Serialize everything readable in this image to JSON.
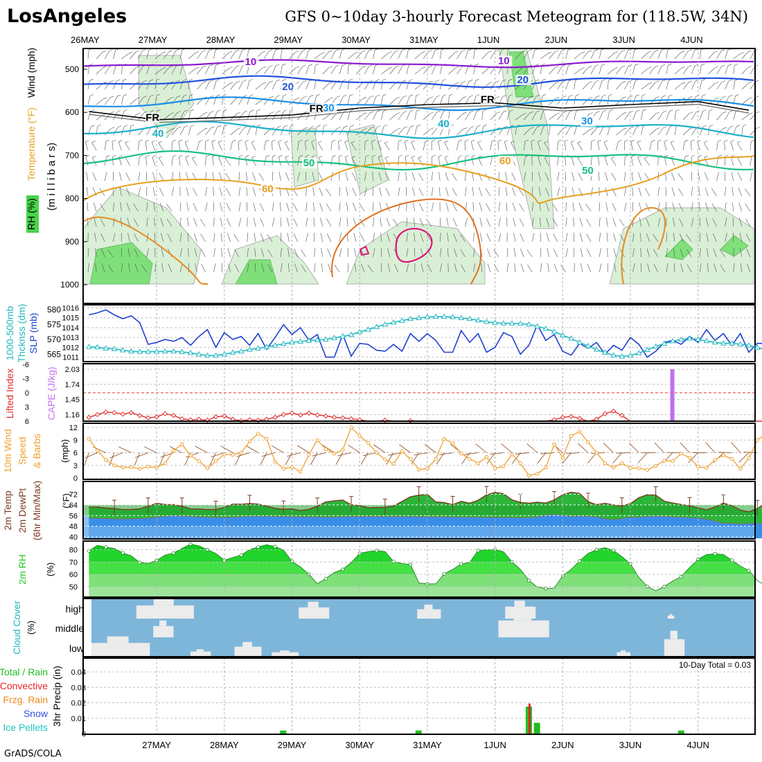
{
  "header": {
    "site": "LosAngeles",
    "title": "GFS 0~10day 3-hourly Forecast Meteogram for (118.5W, 34N)"
  },
  "footer": {
    "credit": "GrADS/COLA"
  },
  "colors": {
    "slp": "#2040d0",
    "thickness": "#20b8c0",
    "lifted_index": "#e03030",
    "cape": "#c070f0",
    "wind10m": "#f0a030",
    "barbs": "#8b4513",
    "temp": "#1db530",
    "dewpt": "#3b8ee8",
    "rh": "#28c828",
    "cloud_sky": "#7eb6d9",
    "cloud": "#ececec",
    "rain": "#22bb22",
    "convective": "#ee2222"
  },
  "chart_data": [
    {
      "panel": "upper_air",
      "type": "contour",
      "legend_labels": [
        "Wind (mph)",
        "Temperature (°F)",
        "RH (%)"
      ],
      "ylabel": "(m i l l i b a r s)",
      "ylim": [
        1000,
        460
      ],
      "yticks": [
        "500",
        "600",
        "700",
        "800",
        "900",
        "1000"
      ],
      "top_day_labels": [
        "26MAY",
        "27MAY",
        "28MAY",
        "29MAY",
        "30MAY",
        "31MAY",
        "1JUN",
        "2JUN",
        "3JUN",
        "4JUN"
      ],
      "contour_labels": [
        {
          "text": "10",
          "day": 2.39,
          "p": 490
        },
        {
          "text": "10",
          "day": 6.13,
          "p": 488
        },
        {
          "text": "20",
          "day": 2.94,
          "p": 548
        },
        {
          "text": "20",
          "day": 6.41,
          "p": 532
        },
        {
          "text": "30",
          "day": 3.54,
          "p": 597
        },
        {
          "text": "30",
          "day": 7.36,
          "p": 628
        },
        {
          "text": "40",
          "day": 1.02,
          "p": 657
        },
        {
          "text": "40",
          "day": 5.24,
          "p": 634
        },
        {
          "text": "50",
          "day": 3.25,
          "p": 725
        },
        {
          "text": "50",
          "day": 7.37,
          "p": 743
        },
        {
          "text": "60",
          "day": 2.64,
          "p": 785
        },
        {
          "text": "60",
          "day": 6.15,
          "p": 720
        },
        {
          "text": "FR",
          "day": 0.94,
          "p": 620
        },
        {
          "text": "FR",
          "day": 3.36,
          "p": 599
        },
        {
          "text": "FR",
          "day": 5.89,
          "p": 578
        }
      ],
      "freezing_level_mb": [
        {
          "day": 0.0,
          "p": 598
        },
        {
          "day": 1.0,
          "p": 617
        },
        {
          "day": 2.0,
          "p": 612
        },
        {
          "day": 3.0,
          "p": 606
        },
        {
          "day": 4.0,
          "p": 590
        },
        {
          "day": 5.0,
          "p": 582
        },
        {
          "day": 6.0,
          "p": 578
        },
        {
          "day": 7.0,
          "p": 590
        },
        {
          "day": 8.0,
          "p": 582
        },
        {
          "day": 9.0,
          "p": 575
        },
        {
          "day": 9.75,
          "p": 595
        }
      ]
    },
    {
      "panel": "pressure",
      "type": "line",
      "left_label": "1000-500mb Thcknss (dm)",
      "right_label": "SLP (mb)",
      "left_ylim": [
        563,
        582
      ],
      "left_ticks": [
        565,
        570,
        575,
        580
      ],
      "right_ylim": [
        1010.5,
        1016.5
      ],
      "right_ticks": [
        1011,
        1012,
        1013,
        1014,
        1015,
        1016
      ],
      "series": [
        {
          "name": "SLP",
          "axis": "right",
          "values": [
            1015.3,
            1015.5,
            1015.8,
            1015.3,
            1014.9,
            1015.2,
            1014.5,
            1012.3,
            1012.5,
            1012.8,
            1012.6,
            1013.0,
            1012.2,
            1013.1,
            1013.8,
            1012.0,
            1013.5,
            1012.8,
            1013.1,
            1012.2,
            1013.4,
            1011.8,
            1013.0,
            1014.3,
            1013.3,
            1014.0,
            1012.7,
            1013.3,
            1011.0,
            1011.0,
            1013.3,
            1011.1,
            1012.4,
            1012.3,
            1011.7,
            1011.6,
            1012.3,
            1011.6,
            1013.4,
            1012.6,
            1013.4,
            1012.7,
            1011.5,
            1011.5,
            1013.7,
            1012.5,
            1013.4,
            1011.5,
            1012.0,
            1013.5,
            1013.1,
            1011.3,
            1012.2,
            1014.3,
            1012.7,
            1013.3,
            1011.6,
            1011.2,
            1012.4,
            1011.9,
            1012.5,
            1011.3,
            1012.2,
            1011.7,
            1013.0,
            1012.3,
            1011.0,
            1011.6,
            1012.5,
            1012.7,
            1012.3,
            1013.1,
            1012.5,
            1013.8,
            1012.7,
            1013.4,
            1012.2,
            1013.4,
            1011.5,
            1012.4,
            1012.4
          ]
        },
        {
          "name": "1000-500mb Thickness",
          "axis": "left",
          "values": [
            567.5,
            567.4,
            567.0,
            566.8,
            566.4,
            566.0,
            565.9,
            565.9,
            565.9,
            566.0,
            566.0,
            565.8,
            565.5,
            565.0,
            564.6,
            564.6,
            565.0,
            565.6,
            566.0,
            566.6,
            567.0,
            567.5,
            568.0,
            568.5,
            569.0,
            569.3,
            569.6,
            569.8,
            570.0,
            570.5,
            571.0,
            571.6,
            572.5,
            573.3,
            574.2,
            575.0,
            575.7,
            576.3,
            576.9,
            577.2,
            577.5,
            577.6,
            577.6,
            577.5,
            577.2,
            576.9,
            576.4,
            575.9,
            575.6,
            575.4,
            575.4,
            575.3,
            575.0,
            574.4,
            573.6,
            572.6,
            571.4,
            570.3,
            569.0,
            567.8,
            566.6,
            565.6,
            564.7,
            564.3,
            564.6,
            565.4,
            566.5,
            567.6,
            568.6,
            569.4,
            570.0,
            570.3,
            570.0,
            569.5,
            569.0,
            568.7,
            568.7,
            568.4,
            568.0,
            567.3,
            566.6
          ]
        }
      ]
    },
    {
      "panel": "stability",
      "type": "line+bar",
      "left_label": "Lifted Index",
      "right_label": "CAPE (J/kg)",
      "left_ticks": [
        -6,
        -3,
        0,
        3,
        6
      ],
      "left_ylim": [
        -6,
        6
      ],
      "right_ticks": [
        1.16,
        1.45,
        1.74,
        2.03
      ],
      "right_ylim": [
        0.95,
        2.15
      ],
      "zero_line": 0,
      "series": [
        {
          "name": "Lifted Index",
          "values": [
            5.2,
            4.6,
            4.1,
            4.2,
            4.5,
            4.2,
            4.8,
            5.3,
            5.1,
            4.4,
            4.8,
            5.5,
            5.7,
            5.6,
            5.8,
            5.1,
            4.9,
            5.6,
            5.9,
            5.7,
            5.8,
            5.6,
            5.2,
            4.6,
            4.3,
            4.7,
            4.3,
            4.7,
            4.9,
            5.2,
            5.3,
            5.5,
            5.7,
            6.0,
            6.0,
            5.8,
            6.0,
            6.0,
            5.9,
            6.0,
            6.0,
            6.0,
            6.0,
            6.0,
            6.0,
            6.0,
            6.0,
            6.0,
            6.0,
            6.0,
            6.0,
            6.0,
            6.0,
            6.0,
            6.0,
            5.7,
            5.2,
            5.0,
            5.4,
            6.0,
            5.6,
            4.4,
            3.9,
            4.8,
            6.0,
            6.0,
            6.0,
            6.0,
            6.0,
            6.0,
            6.0,
            6.0,
            6.0,
            6.0,
            6.0,
            6.0,
            6.0,
            6.0,
            6.0,
            6.0,
            6.0
          ]
        },
        {
          "name": "CAPE",
          "bars": [
            {
              "day": 8.62,
              "value": 2.03
            }
          ]
        }
      ]
    },
    {
      "panel": "wind10m",
      "type": "line",
      "left_label": "10m Wind Speed & Barbs",
      "unit": "(mph)",
      "ylim": [
        0,
        12
      ],
      "yticks": [
        0,
        3,
        6,
        9,
        12
      ],
      "series": [
        {
          "name": "10m Wind Speed",
          "values": [
            9.3,
            6.5,
            4.3,
            3.0,
            2.5,
            2.6,
            2.2,
            2.7,
            2.5,
            3.5,
            6.5,
            8.0,
            5.3,
            4.0,
            2.3,
            4.0,
            5.6,
            5.5,
            6.0,
            8.7,
            10.5,
            9.3,
            3.9,
            2.2,
            2.6,
            1.5,
            5.5,
            9.0,
            6.8,
            5.8,
            6.7,
            12.0,
            10.0,
            8.3,
            6.0,
            4.4,
            3.4,
            6.3,
            4.5,
            2.0,
            2.2,
            4.5,
            9.3,
            8.2,
            5.8,
            4.5,
            3.5,
            5.0,
            2.3,
            2.8,
            5.6,
            3.5,
            0.6,
            1.0,
            2.5,
            8.0,
            4.8,
            10.0,
            11.0,
            8.5,
            6.0,
            3.5,
            2.5,
            3.5,
            2.4,
            2.3,
            1.9,
            2.9,
            4.1,
            4.0,
            5.8,
            4.8,
            2.7,
            2.4,
            4.3,
            5.4,
            4.5,
            2.2,
            4.7,
            9.0,
            10.5
          ]
        }
      ]
    },
    {
      "panel": "temperature",
      "type": "area",
      "left_label": "2m Temp 2m DewPt (6hr Min/Max)",
      "unit": "(°F)",
      "ylim": [
        38,
        78
      ],
      "yticks": [
        40,
        48,
        56,
        64,
        72
      ],
      "series": [
        {
          "name": "2m Temp",
          "values": [
            62.3,
            62.3,
            61.7,
            61.3,
            60.5,
            60.5,
            61.0,
            63.0,
            65.2,
            64.3,
            64.2,
            63.0,
            61.0,
            60.9,
            60.5,
            60.6,
            62.1,
            64.6,
            64.5,
            65.0,
            64.6,
            63.1,
            61.4,
            60.7,
            61.0,
            59.7,
            60.7,
            63.0,
            66.2,
            67.0,
            67.7,
            64.1,
            63.4,
            61.8,
            62.0,
            62.1,
            63.2,
            66.6,
            70.1,
            71.4,
            72.0,
            66.2,
            65.8,
            64.2,
            66.7,
            65.3,
            67.5,
            71.6,
            73.4,
            72.4,
            67.8,
            65.9,
            65.3,
            66.0,
            65.4,
            67.8,
            71.6,
            73.5,
            72.6,
            66.5,
            64.2,
            65.2,
            64.0,
            63.1,
            65.0,
            69.4,
            71.7,
            71.4,
            66.8,
            65.5,
            64.3,
            63.3,
            61.8,
            60.3,
            62.3,
            65.4,
            63.4,
            60.1,
            58.8,
            61.2,
            65.6
          ]
        },
        {
          "name": "2m DewPt",
          "values": [
            54.1,
            54.0,
            53.8,
            53.5,
            53.5,
            53.6,
            53.8,
            54.1,
            54.7,
            55.4,
            55.9,
            55.6,
            55.3,
            55.0,
            54.8,
            54.6,
            54.6,
            54.7,
            55.1,
            55.5,
            55.5,
            55.5,
            55.4,
            55.2,
            55.2,
            55.1,
            55.0,
            55.0,
            54.9,
            55.0,
            55.1,
            55.3,
            55.3,
            55.4,
            55.3,
            55.3,
            55.3,
            55.3,
            55.2,
            55.2,
            55.1,
            55.1,
            55.0,
            55.0,
            54.8,
            54.7,
            54.7,
            54.6,
            54.6,
            54.5,
            54.4,
            54.4,
            54.5,
            55.0,
            56.1,
            56.9,
            56.2,
            55.3,
            55.6,
            55.4,
            54.9,
            53.7,
            52.9,
            53.8,
            54.7,
            54.8,
            55.3,
            55.5,
            55.4,
            54.9,
            54.8,
            54.4,
            54.2,
            53.2,
            51.9,
            50.2,
            50.1,
            49.8,
            50.0,
            50.2,
            50.0
          ]
        }
      ]
    },
    {
      "panel": "rh2m",
      "type": "area",
      "left_label": "2m RH",
      "unit": "(%)",
      "ylim": [
        43,
        86
      ],
      "yticks": [
        50,
        60,
        70,
        80
      ],
      "series": [
        {
          "name": "2m RH",
          "values": [
            79.0,
            83.5,
            82.0,
            81.0,
            77.4,
            75.0,
            69.7,
            68.8,
            71.3,
            75.6,
            77.3,
            81.0,
            84.5,
            83.1,
            80.0,
            77.0,
            71.5,
            73.6,
            75.7,
            80.0,
            82.2,
            84.0,
            82.5,
            79.6,
            70.5,
            66.1,
            60.1,
            52.4,
            56.6,
            61.5,
            64.0,
            69.5,
            77.0,
            78.5,
            79.2,
            78.5,
            70.4,
            68.8,
            68.0,
            53.1,
            52.3,
            52.3,
            60.5,
            64.0,
            68.4,
            69.7,
            79.3,
            80.0,
            80.1,
            78.4,
            70.2,
            64.0,
            55.1,
            49.8,
            48.6,
            48.8,
            58.9,
            64.0,
            70.8,
            77.0,
            80.0,
            81.6,
            79.4,
            74.4,
            68.6,
            57.5,
            50.2,
            46.7,
            50.2,
            54.6,
            58.2,
            65.6,
            72.4,
            76.0,
            76.7,
            76.0,
            71.5,
            66.7,
            63.1,
            55.1,
            50.7
          ]
        }
      ]
    },
    {
      "panel": "cloud_cover",
      "type": "area",
      "left_label": "Cloud Cover",
      "unit": "(%)",
      "levels": [
        "high",
        "middle",
        "low"
      ],
      "series": [
        {
          "name": "high",
          "blocks": [
            {
              "start": 0.7,
              "end": 1.55,
              "value": 35
            },
            {
              "start": 3.1,
              "end": 3.55,
              "value": 30
            },
            {
              "start": 4.85,
              "end": 5.2,
              "value": 25
            },
            {
              "start": 6.15,
              "end": 6.6,
              "value": 32
            },
            {
              "start": 8.55,
              "end": 8.65,
              "value": 8
            }
          ]
        },
        {
          "name": "middle",
          "blocks": [
            {
              "start": 0.95,
              "end": 1.25,
              "value": 30
            },
            {
              "start": 6.05,
              "end": 6.8,
              "value": 45
            }
          ]
        },
        {
          "name": "low",
          "blocks": [
            {
              "start": 0.0,
              "end": 0.9,
              "value": 35
            },
            {
              "start": 1.5,
              "end": 1.8,
              "value": 12
            },
            {
              "start": 2.15,
              "end": 2.55,
              "value": 25
            },
            {
              "start": 2.7,
              "end": 3.1,
              "value": 10
            },
            {
              "start": 7.8,
              "end": 8.0,
              "value": 10
            },
            {
              "start": 8.5,
              "end": 8.8,
              "value": 45
            }
          ]
        }
      ]
    },
    {
      "panel": "precipitation",
      "type": "bar",
      "left_labels": [
        "Total / Rain",
        "Convective",
        "Frzg. Rain",
        "Snow",
        "Ice Pellets"
      ],
      "ylabel": "3hr Precip (in)",
      "ylim": [
        0,
        0.048
      ],
      "yticks": [
        "0",
        "0.01",
        "0.02",
        "0.03",
        "0.04"
      ],
      "annotation": "10-Day Total = 0.03",
      "x_day_labels": [
        "27MAY",
        "28MAY",
        "29MAY",
        "30MAY",
        "31MAY",
        "1JUN",
        "2JUN",
        "3JUN",
        "4JUN"
      ],
      "series": [
        {
          "name": "Total / Rain",
          "bars": [
            {
              "day": 2.87,
              "value": 0.002
            },
            {
              "day": 4.87,
              "value": 0.002
            },
            {
              "day": 6.5,
              "value": 0.0175
            },
            {
              "day": 6.62,
              "value": 0.007
            },
            {
              "day": 8.75,
              "value": 0.002
            }
          ]
        },
        {
          "name": "Convective",
          "bars": [
            {
              "day": 6.51,
              "value": 0.0195
            }
          ]
        }
      ]
    }
  ]
}
